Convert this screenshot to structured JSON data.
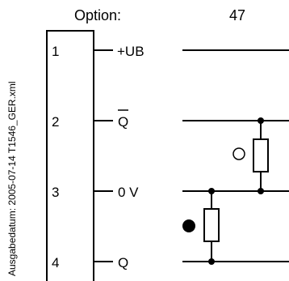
{
  "side_text": "Ausgabedatum: 2005-07-14   T1546_GER.xml",
  "option_label": "Option:",
  "option_value": "47",
  "terminals": [
    {
      "number": "1",
      "label": "+UB"
    },
    {
      "number": "2",
      "label": "Q"
    },
    {
      "number": "3",
      "label": "0 V"
    },
    {
      "number": "4",
      "label": "Q"
    }
  ],
  "symbols": {
    "open_circle": "hollow-circle-icon",
    "filled_circle": "filled-circle-icon"
  },
  "colors": {
    "line": "#000000",
    "background": "#ffffff"
  }
}
